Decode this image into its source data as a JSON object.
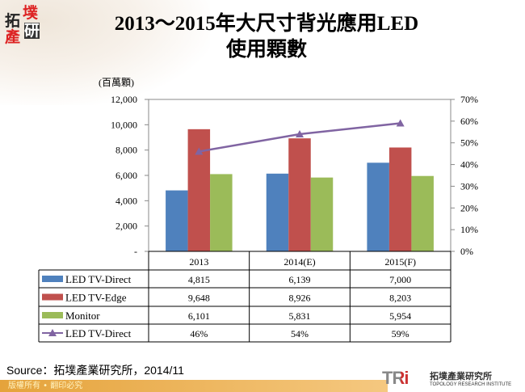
{
  "logo": {
    "chars": [
      "拓",
      "墣",
      "產",
      "研"
    ]
  },
  "title": {
    "line1": "2013～2015年大尺寸背光應用LED",
    "line2": "使用顆數"
  },
  "chart_data": {
    "type": "bar+line",
    "categories": [
      "2013",
      "2014(E)",
      "2015(F)"
    ],
    "ylabel": "(百萬顆)",
    "ylim": [
      0,
      12000
    ],
    "yticks": [
      "-",
      "2,000",
      "4,000",
      "6,000",
      "8,000",
      "10,000",
      "12,000"
    ],
    "y2lim": [
      0,
      70
    ],
    "y2ticks": [
      "0%",
      "10%",
      "20%",
      "30%",
      "40%",
      "50%",
      "60%",
      "70%"
    ],
    "grid": false,
    "series": [
      {
        "name": "LED TV-Direct",
        "type": "bar",
        "color": "#4f81bd",
        "values": [
          4815,
          6139,
          7000
        ],
        "labels": [
          "4,815",
          "6,139",
          "7,000"
        ]
      },
      {
        "name": "LED TV-Edge",
        "type": "bar",
        "color": "#c0504d",
        "values": [
          9648,
          8926,
          8203
        ],
        "labels": [
          "9,648",
          "8,926",
          "8,203"
        ]
      },
      {
        "name": "Monitor",
        "type": "bar",
        "color": "#9bbb59",
        "values": [
          6101,
          5831,
          5954
        ],
        "labels": [
          "6,101",
          "5,831",
          "5,954"
        ]
      },
      {
        "name": "LED TV-Direct",
        "type": "line",
        "axis": "right",
        "color": "#8064a2",
        "marker": "triangle",
        "values": [
          46,
          54,
          59
        ],
        "labels": [
          "46%",
          "54%",
          "59%"
        ]
      }
    ],
    "legend": "data-table"
  },
  "source": "Source：拓墣產業研究所，2014/11",
  "footer": "版權所有 • 翻印必究",
  "brand": {
    "mark": "TRi",
    "cn": "拓墣產業研究所",
    "en": "TOPOLOGY RESEARCH INSTITUTE"
  }
}
